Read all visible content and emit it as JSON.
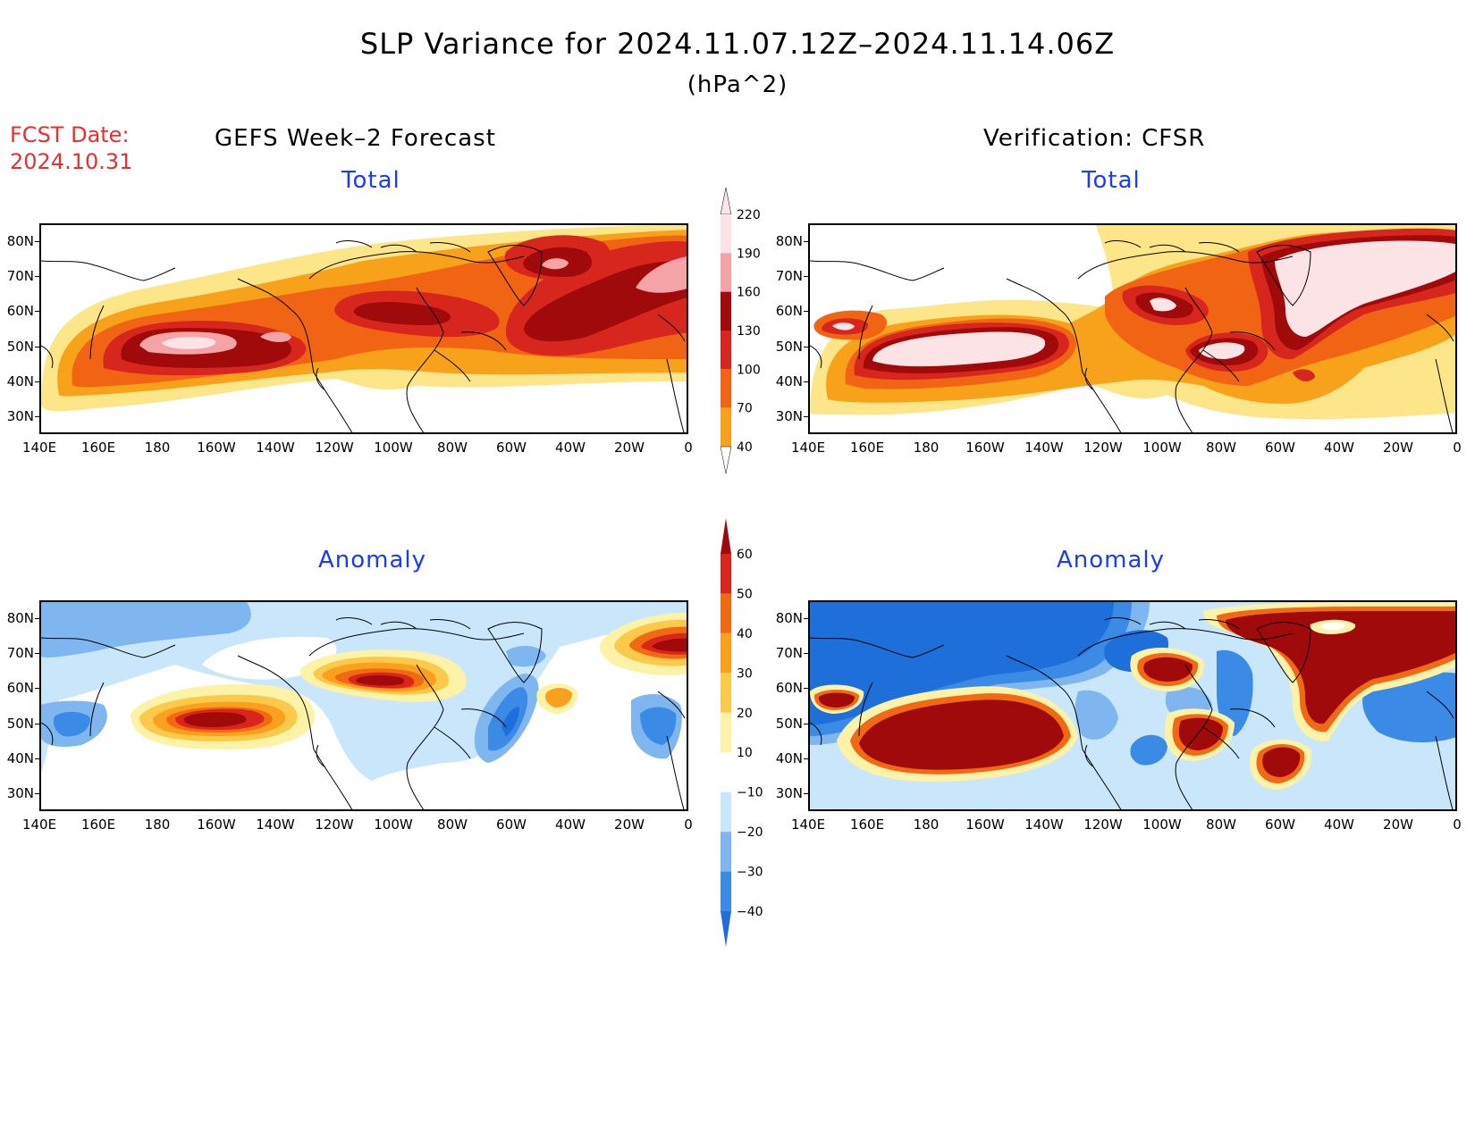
{
  "title": "SLP Variance for 2024.11.07.12Z–2024.11.14.06Z",
  "units": "(hPa^2)",
  "fcst_date_label": "FCST Date:",
  "fcst_date_value": "2024.10.31",
  "left_column_title": "GEFS Week–2 Forecast",
  "right_column_title": "Verification: CFSR",
  "panels": {
    "gefs_total": {
      "title": "Total"
    },
    "cfsr_total": {
      "title": "Total"
    },
    "gefs_anomaly": {
      "title": "Anomaly"
    },
    "cfsr_anomaly": {
      "title": "Anomaly"
    }
  },
  "lat_ticks": [
    "80N",
    "70N",
    "60N",
    "50N",
    "40N",
    "30N"
  ],
  "lon_ticks": [
    "140E",
    "160E",
    "180",
    "160W",
    "140W",
    "120W",
    "100W",
    "80W",
    "60W",
    "40W",
    "20W",
    "0"
  ],
  "total_colorbar": {
    "levels": [
      "40",
      "70",
      "100",
      "130",
      "160",
      "190",
      "220"
    ],
    "colors": [
      "#fde68a",
      "#f7a21a",
      "#f06414",
      "#d7261e",
      "#a10a0a",
      "#f4a3a6",
      "#fce3e6"
    ]
  },
  "anomaly_colorbar": {
    "levels": [
      "−40",
      "−30",
      "−20",
      "−10",
      "10",
      "20",
      "30",
      "40",
      "50",
      "60"
    ],
    "colors": [
      "#1e6fd9",
      "#3a8ae6",
      "#7fb6f0",
      "#c9e6fb",
      "#ffffff",
      "#fdf3a8",
      "#fcc94a",
      "#f9a01e",
      "#f06a14",
      "#d8261c",
      "#a10a0a"
    ]
  }
}
